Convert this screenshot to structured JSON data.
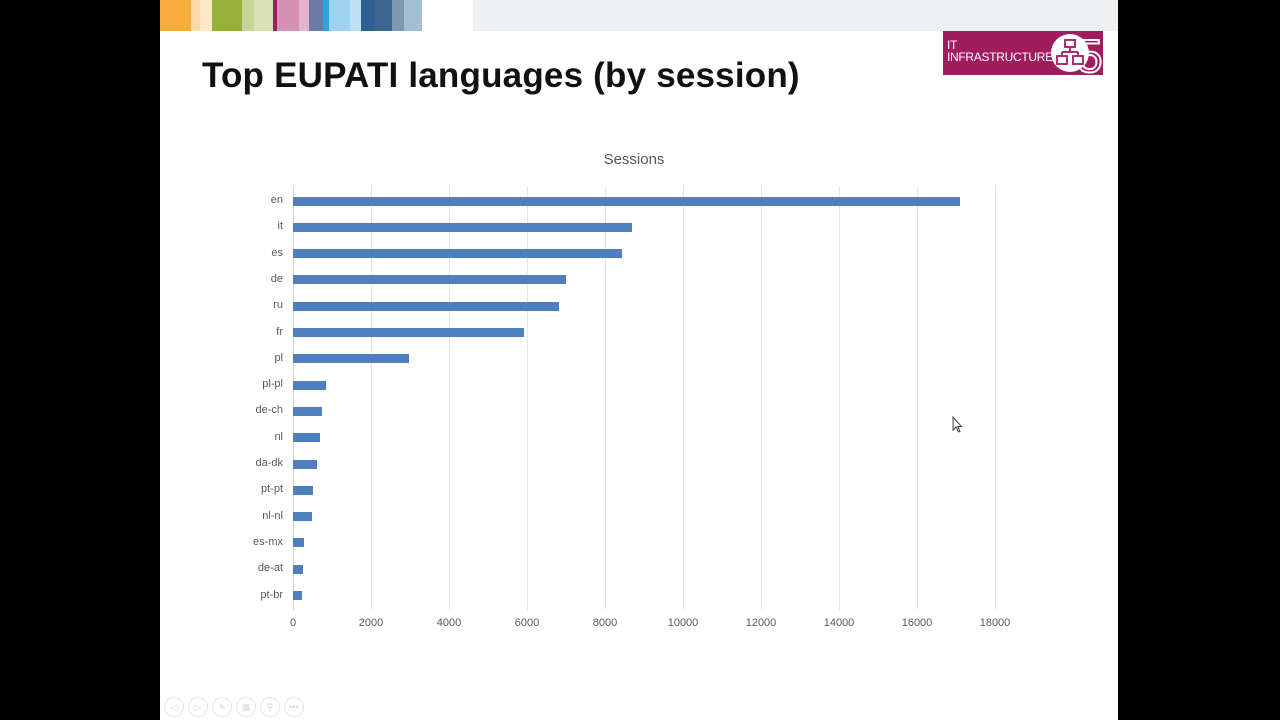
{
  "slide": {
    "title": "Top EUPATI languages (by session)",
    "header_colors": [
      "#f9ad3c",
      "#fdd9a6",
      "#fde7c4",
      "#96b03a",
      "#c8d59a",
      "#d8e0b4",
      "#9a1f5c",
      "#d690b4",
      "#e3b3ca",
      "#6b7aa6",
      "#2ba3dc",
      "#9fd2ef",
      "#bde0f3",
      "#2d5f91",
      "#3b668f",
      "#7f97b1",
      "#a3bfd4"
    ],
    "logo": {
      "line1": "IT",
      "line2": "INFRASTRUCTURE",
      "badge": "5",
      "icon": "network-icon",
      "color": "#a01c5e"
    }
  },
  "nav_controls": [
    {
      "name": "previous-icon",
      "glyph": "◁"
    },
    {
      "name": "next-icon",
      "glyph": "▷"
    },
    {
      "name": "pen-icon",
      "glyph": "✎"
    },
    {
      "name": "slides-icon",
      "glyph": "▦"
    },
    {
      "name": "zoom-icon",
      "glyph": "⚲"
    },
    {
      "name": "more-icon",
      "glyph": "•••"
    }
  ],
  "chart_data": {
    "type": "bar",
    "orientation": "horizontal",
    "title": "Sessions",
    "xlabel": "",
    "ylabel": "",
    "xlim": [
      0,
      18000
    ],
    "x_ticks": [
      0,
      2000,
      4000,
      6000,
      8000,
      10000,
      12000,
      14000,
      16000,
      18000
    ],
    "grid": true,
    "legend": null,
    "bar_color": "#4f7fbd",
    "categories": [
      "en",
      "it",
      "es",
      "de",
      "ru",
      "fr",
      "pl",
      "pl-pl",
      "de-ch",
      "nl",
      "da-dk",
      "pt-pt",
      "nl-nl",
      "es-mx",
      "de-at",
      "pt-br"
    ],
    "values": [
      17100,
      8700,
      8440,
      7000,
      6820,
      5920,
      2970,
      850,
      740,
      690,
      610,
      510,
      490,
      280,
      260,
      230
    ]
  }
}
